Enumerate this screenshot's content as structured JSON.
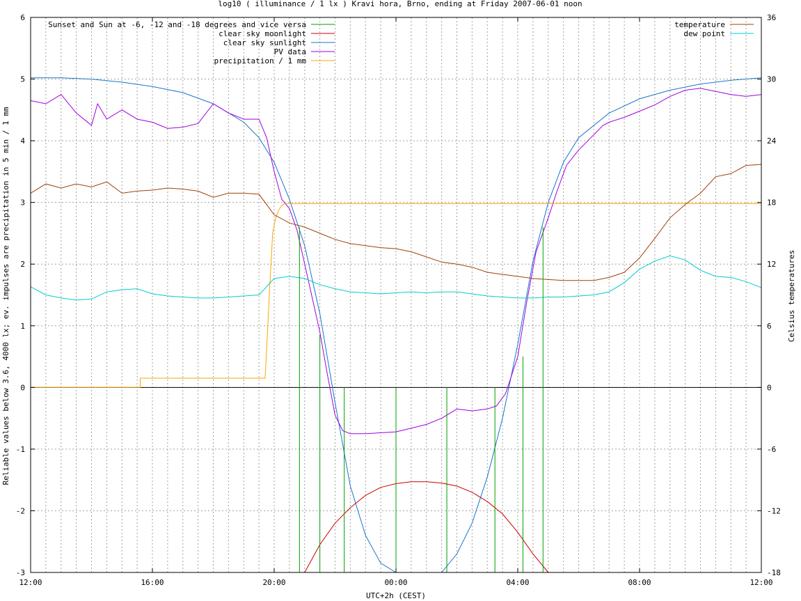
{
  "chart_data": {
    "type": "line",
    "title": "log10 ( illuminance / 1 lx ) Kravi hora, Brno, ending at Friday 2007-06-01 noon",
    "xlabel": "UTC+2h (CEST)",
    "ylabel": "Reliable values below 3.6, 4000 lx; ev. impulses are precipitation in 5 min / 1 mm",
    "y2label": "Celsius temperatures",
    "xlim": [
      12,
      36
    ],
    "ylim": [
      -3,
      6
    ],
    "y2lim": [
      -18,
      36
    ],
    "x_ticks": [
      {
        "x": 12,
        "label": "12:00"
      },
      {
        "x": 16,
        "label": "16:00"
      },
      {
        "x": 20,
        "label": "20:00"
      },
      {
        "x": 24,
        "label": "00:00"
      },
      {
        "x": 28,
        "label": "04:00"
      },
      {
        "x": 32,
        "label": "08:00"
      },
      {
        "x": 36,
        "label": "12:00"
      }
    ],
    "y_ticks": [
      "-3",
      "-2",
      "-1",
      "0",
      "1",
      "2",
      "3",
      "4",
      "5",
      "6"
    ],
    "y2_ticks": [
      "-18",
      "-12",
      "-6",
      "0",
      "6",
      "12",
      "18",
      "24",
      "30",
      "36"
    ],
    "grid": true,
    "legend_left": [
      {
        "name": "Sunset and Sun at -6, -12 and -18 degrees and vice versa",
        "color": "#00a000"
      },
      {
        "name": "clear sky moonlight",
        "color": "#cc0000"
      },
      {
        "name": "clear sky sunlight",
        "color": "#1874cd"
      },
      {
        "name": "PV data",
        "color": "#a000e0"
      },
      {
        "name": "precipitation / 1 mm",
        "color": "#ffa500"
      }
    ],
    "legend_right": [
      {
        "name": "temperature",
        "color": "#a0400a"
      },
      {
        "name": "dew point",
        "color": "#00cccc"
      }
    ],
    "sun_events": [
      {
        "x": 20.83,
        "y": 2.6
      },
      {
        "x": 21.5,
        "y": 0.85
      },
      {
        "x": 22.3,
        "y": 0
      },
      {
        "x": 24.0,
        "y": 0
      },
      {
        "x": 25.67,
        "y": 0
      },
      {
        "x": 27.25,
        "y": 0
      },
      {
        "x": 28.17,
        "y": 0.5
      },
      {
        "x": 28.83,
        "y": 2.6
      }
    ],
    "series": [
      {
        "name": "clear sky sunlight",
        "color": "#1874cd",
        "x": [
          12,
          13,
          14,
          15,
          16,
          17,
          18,
          19,
          19.5,
          20,
          20.5,
          21,
          21.5,
          22,
          22.5,
          23,
          23.5,
          24,
          25,
          25.5,
          26,
          26.5,
          27,
          27.5,
          28,
          28.5,
          29,
          29.5,
          30,
          31,
          32,
          33,
          34,
          35,
          36
        ],
        "y": [
          5.02,
          5.02,
          5.0,
          4.95,
          4.88,
          4.78,
          4.6,
          4.3,
          4.05,
          3.65,
          3.05,
          2.3,
          1.2,
          -0.25,
          -1.6,
          -2.4,
          -2.85,
          -3.05,
          -3.2,
          -3.0,
          -2.7,
          -2.2,
          -1.45,
          -0.5,
          0.7,
          2.05,
          3.0,
          3.65,
          4.05,
          4.45,
          4.68,
          4.82,
          4.92,
          4.98,
          5.02
        ]
      },
      {
        "name": "clear sky moonlight",
        "color": "#cc0000",
        "x": [
          21.0,
          21.5,
          22.0,
          22.5,
          23.0,
          23.5,
          24.0,
          24.5,
          25.0,
          25.5,
          26.0,
          26.5,
          27.0,
          27.5,
          28.0,
          28.5,
          29.0
        ],
        "y": [
          -3.0,
          -2.55,
          -2.2,
          -1.95,
          -1.75,
          -1.62,
          -1.56,
          -1.53,
          -1.53,
          -1.55,
          -1.6,
          -1.7,
          -1.85,
          -2.05,
          -2.35,
          -2.7,
          -3.0
        ]
      },
      {
        "name": "PV data",
        "color": "#a000e0",
        "x": [
          12,
          12.5,
          13,
          13.5,
          14,
          14.2,
          14.5,
          15,
          15.5,
          16,
          16.5,
          17,
          17.5,
          18,
          18.5,
          19,
          19.5,
          19.75,
          20,
          20.25,
          20.5,
          20.75,
          21,
          21.25,
          21.5,
          21.75,
          22,
          22.25,
          22.5,
          23,
          24,
          25,
          25.5,
          26,
          26.5,
          27,
          27.3,
          27.6,
          28,
          28.3,
          28.6,
          29,
          29.3,
          29.6,
          30,
          30.5,
          30.8,
          31,
          31.5,
          32,
          32.5,
          33,
          33.5,
          34,
          34.5,
          35,
          35.5,
          36
        ],
        "y": [
          4.65,
          4.6,
          4.75,
          4.45,
          4.25,
          4.6,
          4.35,
          4.5,
          4.35,
          4.3,
          4.2,
          4.22,
          4.28,
          4.6,
          4.45,
          4.35,
          4.35,
          4.05,
          3.5,
          3.05,
          2.9,
          2.55,
          2.0,
          1.45,
          0.9,
          0.2,
          -0.45,
          -0.7,
          -0.75,
          -0.75,
          -0.72,
          -0.6,
          -0.5,
          -0.35,
          -0.38,
          -0.35,
          -0.3,
          -0.1,
          0.5,
          1.4,
          2.2,
          2.75,
          3.2,
          3.6,
          3.85,
          4.1,
          4.25,
          4.3,
          4.38,
          4.48,
          4.58,
          4.72,
          4.82,
          4.85,
          4.8,
          4.75,
          4.72,
          4.75
        ]
      },
      {
        "name": "precipitation / 1 mm",
        "color": "#ffa500",
        "x": [
          12,
          15.6,
          15.6,
          19.7,
          19.75,
          19.85,
          19.95,
          20.05,
          20.15,
          20.25,
          20.35,
          36
        ],
        "y": [
          0,
          0,
          0.15,
          0.15,
          0.6,
          1.6,
          2.5,
          2.75,
          2.88,
          2.95,
          2.98,
          2.98
        ]
      },
      {
        "name": "temperature",
        "color": "#a0400a",
        "axis": "y2",
        "x": [
          12,
          12.5,
          13,
          13.5,
          14,
          14.5,
          15,
          15.5,
          16,
          16.5,
          17,
          17.5,
          18,
          18.5,
          19,
          19.5,
          20,
          20.5,
          21,
          21.5,
          22,
          22.5,
          23,
          23.5,
          24,
          24.5,
          25,
          25.5,
          26,
          26.5,
          27,
          27.5,
          28,
          28.5,
          29,
          29.5,
          30,
          30.5,
          31,
          31.5,
          32,
          32.5,
          33,
          33.5,
          34,
          34.5,
          35,
          35.5,
          36
        ],
        "y": [
          18.9,
          19.8,
          19.4,
          19.8,
          19.5,
          20.0,
          18.9,
          19.1,
          19.2,
          19.4,
          19.3,
          19.1,
          18.5,
          18.9,
          18.9,
          18.8,
          16.8,
          16.0,
          15.6,
          15.0,
          14.4,
          14.0,
          13.8,
          13.6,
          13.5,
          13.2,
          12.7,
          12.2,
          12.0,
          11.7,
          11.2,
          11.0,
          10.8,
          10.6,
          10.5,
          10.4,
          10.4,
          10.4,
          10.7,
          11.2,
          12.6,
          14.5,
          16.5,
          17.8,
          18.9,
          20.5,
          20.8,
          21.6,
          21.7
        ]
      },
      {
        "name": "dew point",
        "color": "#00cccc",
        "axis": "y2",
        "x": [
          12,
          12.5,
          13,
          13.5,
          14,
          14.5,
          15,
          15.5,
          16,
          16.5,
          17,
          17.5,
          18,
          18.5,
          19,
          19.5,
          20,
          20.5,
          21,
          21.5,
          22,
          22.5,
          23,
          23.5,
          24,
          24.5,
          25,
          25.5,
          26,
          26.5,
          27,
          27.5,
          28,
          28.5,
          29,
          29.5,
          30,
          30.5,
          31,
          31.5,
          32,
          32.5,
          33,
          33.5,
          34,
          34.5,
          35,
          35.5,
          36
        ],
        "y": [
          9.8,
          9.0,
          8.7,
          8.5,
          8.6,
          9.3,
          9.5,
          9.6,
          9.1,
          8.9,
          8.8,
          8.7,
          8.7,
          8.8,
          8.9,
          9.0,
          10.6,
          10.8,
          10.6,
          10.0,
          9.6,
          9.3,
          9.2,
          9.1,
          9.2,
          9.3,
          9.2,
          9.3,
          9.3,
          9.1,
          8.9,
          8.8,
          8.7,
          8.7,
          8.8,
          8.8,
          8.9,
          9.0,
          9.3,
          10.2,
          11.5,
          12.3,
          12.8,
          12.4,
          11.4,
          10.8,
          10.7,
          10.3,
          9.7
        ]
      }
    ]
  }
}
